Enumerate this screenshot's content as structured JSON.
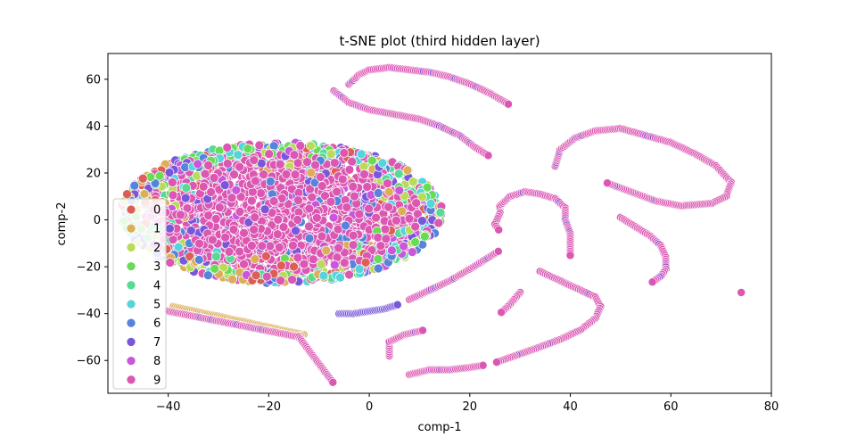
{
  "chart_data": {
    "type": "scatter",
    "title": "t-SNE plot (third hidden layer)",
    "xlabel": "comp-1",
    "ylabel": "comp-2",
    "xlim": [
      -52,
      80
    ],
    "ylim": [
      -74,
      71
    ],
    "xticks": [
      -40,
      -20,
      0,
      20,
      40,
      60,
      80
    ],
    "yticks": [
      -60,
      -40,
      -20,
      0,
      20,
      40,
      60
    ],
    "grid": false,
    "legend_position": "lower-left",
    "legend": [
      {
        "label": "0",
        "color": "#db5f57"
      },
      {
        "label": "1",
        "color": "#dbae57"
      },
      {
        "label": "2",
        "color": "#b9db57"
      },
      {
        "label": "3",
        "color": "#69db57"
      },
      {
        "label": "4",
        "color": "#57db94"
      },
      {
        "label": "5",
        "color": "#57d3db"
      },
      {
        "label": "6",
        "color": "#5784db"
      },
      {
        "label": "7",
        "color": "#7957db"
      },
      {
        "label": "8",
        "color": "#c957db"
      },
      {
        "label": "9",
        "color": "#db57b2"
      }
    ],
    "ellipse_cluster": {
      "center": [
        -17.5,
        3
      ],
      "radius_x": 32,
      "radius_y": 30,
      "dominant_class": "9",
      "mixed_classes": [
        "0",
        "1",
        "2",
        "3",
        "4",
        "5",
        "6",
        "7",
        "8",
        "9"
      ]
    },
    "curve_clusters": [
      {
        "class": "9",
        "points": [
          [
            -4,
            58
          ],
          [
            -2,
            62
          ],
          [
            0,
            64
          ],
          [
            4,
            65
          ],
          [
            8,
            64
          ],
          [
            12,
            63
          ],
          [
            16,
            61
          ],
          [
            20,
            58
          ],
          [
            24,
            54
          ],
          [
            28,
            49
          ]
        ]
      },
      {
        "class": "9",
        "points": [
          [
            -7,
            55
          ],
          [
            -4,
            50
          ],
          [
            0,
            47
          ],
          [
            5,
            45
          ],
          [
            10,
            43
          ],
          [
            14,
            40
          ],
          [
            18,
            36
          ],
          [
            21,
            31
          ],
          [
            24,
            27
          ]
        ]
      },
      {
        "class": "9",
        "points": [
          [
            37,
            23
          ],
          [
            38,
            30
          ],
          [
            41,
            35
          ],
          [
            45,
            38
          ],
          [
            50,
            39
          ],
          [
            55,
            36
          ],
          [
            60,
            33
          ],
          [
            65,
            28
          ],
          [
            69,
            23
          ],
          [
            72,
            16
          ],
          [
            71,
            10
          ],
          [
            68,
            7
          ],
          [
            62,
            6
          ],
          [
            57,
            8
          ],
          [
            52,
            12
          ],
          [
            47,
            16
          ]
        ]
      },
      {
        "class": "9",
        "points": [
          [
            50,
            1
          ],
          [
            53,
            -3
          ],
          [
            56,
            -7
          ],
          [
            58,
            -11
          ],
          [
            59,
            -16
          ],
          [
            59,
            -21
          ],
          [
            58,
            -24
          ],
          [
            56,
            -27
          ]
        ]
      },
      {
        "class": "9",
        "points": [
          [
            26,
            2
          ],
          [
            26,
            6
          ],
          [
            28,
            10
          ],
          [
            31,
            12
          ],
          [
            34,
            11
          ],
          [
            37,
            9
          ],
          [
            39,
            5
          ],
          [
            39,
            0
          ],
          [
            40,
            -6
          ],
          [
            40,
            -11
          ],
          [
            40,
            -16
          ]
        ]
      },
      {
        "class": "9",
        "points": [
          [
            26,
            3
          ],
          [
            25,
            -2
          ],
          [
            26,
            -5
          ]
        ]
      },
      {
        "class": "9",
        "points": [
          [
            34,
            -22
          ],
          [
            38,
            -26
          ],
          [
            42,
            -30
          ],
          [
            45,
            -33
          ],
          [
            46,
            -37
          ],
          [
            45,
            -42
          ],
          [
            42,
            -47
          ],
          [
            38,
            -51
          ],
          [
            33,
            -55
          ],
          [
            29,
            -58
          ],
          [
            25,
            -61
          ]
        ]
      },
      {
        "class": "9",
        "points": [
          [
            30,
            -31
          ],
          [
            28,
            -36
          ],
          [
            26,
            -40
          ]
        ]
      },
      {
        "class": "9",
        "points": [
          [
            8,
            -34
          ],
          [
            12,
            -30
          ],
          [
            16,
            -26
          ],
          [
            20,
            -21
          ],
          [
            23,
            -17
          ],
          [
            26,
            -13
          ]
        ]
      },
      {
        "class": "9",
        "points": [
          [
            8,
            -66
          ],
          [
            12,
            -64
          ],
          [
            16,
            -64
          ],
          [
            20,
            -63
          ],
          [
            23,
            -62
          ]
        ]
      },
      {
        "class": "9",
        "points": [
          [
            4,
            -58
          ],
          [
            4,
            -52
          ],
          [
            7,
            -49
          ],
          [
            11,
            -47
          ]
        ]
      },
      {
        "class": "7",
        "points": [
          [
            -6,
            -40
          ],
          [
            -3,
            -40
          ],
          [
            0,
            -39
          ],
          [
            3,
            -38
          ],
          [
            6,
            -36
          ]
        ]
      },
      {
        "class": "9",
        "points": [
          [
            74,
            -31
          ]
        ]
      },
      {
        "class": "1",
        "points": [
          [
            -38,
            -38
          ],
          [
            -39,
            -37
          ],
          [
            -13,
            -49
          ],
          [
            -14,
            -50
          ],
          [
            -7,
            -70
          ]
        ]
      },
      {
        "class": "9",
        "points": [
          [
            -40,
            -39
          ],
          [
            -14,
            -50
          ],
          [
            -7,
            -70
          ]
        ]
      }
    ]
  }
}
